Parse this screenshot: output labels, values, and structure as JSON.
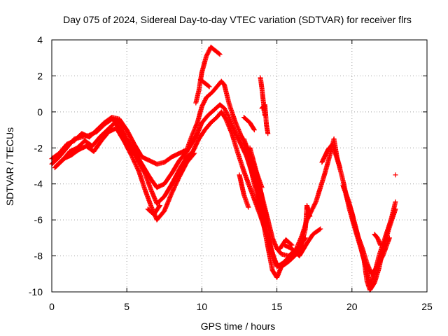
{
  "chart_data": {
    "type": "scatter",
    "title": "Day 075 of 2024, Sidereal Day-to-day VTEC variation (SDTVAR) for receiver flrs",
    "xlabel": "GPS time / hours",
    "ylabel": "SDTVAR / TECUs",
    "xlim": [
      0,
      25
    ],
    "ylim": [
      -10,
      4
    ],
    "xticks": [
      0,
      5,
      10,
      15,
      20,
      25
    ],
    "yticks": [
      -10,
      -8,
      -6,
      -4,
      -2,
      0,
      2,
      4
    ],
    "grid": true,
    "marker": "plus",
    "color": "#ff0000",
    "series": [
      {
        "values": [
          [
            0.0,
            -2.6
          ],
          [
            0.5,
            -2.3
          ],
          [
            1.0,
            -1.8
          ],
          [
            1.5,
            -1.6
          ],
          [
            2.0,
            -1.2
          ],
          [
            2.5,
            -1.4
          ],
          [
            3.0,
            -1.0
          ],
          [
            3.5,
            -0.6
          ],
          [
            4.0,
            -0.3
          ],
          [
            4.5,
            -0.4
          ],
          [
            5.0,
            -1.0
          ],
          [
            5.5,
            -1.8
          ],
          [
            6.0,
            -2.5
          ],
          [
            6.5,
            -2.7
          ],
          [
            7.0,
            -2.9
          ],
          [
            7.5,
            -2.8
          ],
          [
            8.0,
            -2.5
          ],
          [
            8.5,
            -2.3
          ],
          [
            9.0,
            -2.1
          ],
          [
            9.3,
            -1.4
          ],
          [
            9.7,
            -0.6
          ],
          [
            10.0,
            0.3
          ],
          [
            10.3,
            0.8
          ],
          [
            10.7,
            1.1
          ],
          [
            11.0,
            1.4
          ],
          [
            11.3,
            1.7
          ],
          [
            11.5,
            1.5
          ],
          [
            11.8,
            0.5
          ],
          [
            12.2,
            -0.5
          ],
          [
            12.6,
            -1.3
          ],
          [
            13.0,
            -2.0
          ],
          [
            13.4,
            -3.0
          ],
          [
            13.8,
            -4.0
          ],
          [
            14.1,
            -5.0
          ],
          [
            14.4,
            -6.0
          ],
          [
            14.7,
            -7.0
          ],
          [
            15.0,
            -7.6
          ],
          [
            15.3,
            -7.9
          ],
          [
            15.8,
            -8.0
          ],
          [
            16.3,
            -7.6
          ],
          [
            16.7,
            -6.8
          ],
          [
            17.0,
            -6.0
          ],
          [
            17.3,
            -5.5
          ],
          [
            17.6,
            -5.0
          ],
          [
            17.9,
            -4.2
          ],
          [
            18.2,
            -3.4
          ],
          [
            18.5,
            -2.5
          ],
          [
            18.8,
            -1.5
          ],
          [
            19.0,
            -2.5
          ],
          [
            19.4,
            -3.8
          ],
          [
            19.8,
            -5.3
          ],
          [
            20.2,
            -6.5
          ],
          [
            20.6,
            -7.6
          ],
          [
            21.0,
            -8.8
          ],
          [
            21.2,
            -9.6
          ],
          [
            21.5,
            -9.0
          ],
          [
            21.8,
            -8.0
          ],
          [
            22.2,
            -7.0
          ],
          [
            22.6,
            -6.0
          ],
          [
            22.9,
            -5.0
          ]
        ]
      },
      {
        "values": [
          [
            0.0,
            -2.9
          ],
          [
            0.5,
            -2.5
          ],
          [
            1.0,
            -2.0
          ],
          [
            1.5,
            -1.5
          ],
          [
            2.0,
            -1.4
          ],
          [
            2.5,
            -1.3
          ],
          [
            3.0,
            -1.1
          ],
          [
            3.5,
            -0.7
          ],
          [
            4.0,
            -0.4
          ],
          [
            4.5,
            -0.6
          ],
          [
            5.0,
            -1.5
          ],
          [
            5.5,
            -2.2
          ],
          [
            6.0,
            -2.9
          ],
          [
            6.5,
            -3.6
          ],
          [
            7.0,
            -4.2
          ],
          [
            7.5,
            -4.0
          ],
          [
            8.0,
            -3.4
          ],
          [
            8.5,
            -2.7
          ],
          [
            9.0,
            -2.2
          ],
          [
            9.3,
            -1.8
          ],
          [
            9.7,
            -1.2
          ],
          [
            10.0,
            -0.6
          ],
          [
            10.4,
            -0.2
          ],
          [
            10.8,
            0.1
          ],
          [
            11.2,
            0.4
          ],
          [
            11.5,
            0.2
          ],
          [
            11.8,
            -0.3
          ],
          [
            12.2,
            -1.1
          ],
          [
            12.6,
            -1.8
          ],
          [
            13.0,
            -2.5
          ],
          [
            13.4,
            -3.5
          ],
          [
            13.8,
            -4.6
          ],
          [
            14.1,
            -5.6
          ],
          [
            14.4,
            -6.8
          ],
          [
            14.7,
            -7.9
          ],
          [
            15.0,
            -8.5
          ],
          [
            15.3,
            -8.6
          ],
          [
            15.8,
            -8.3
          ],
          [
            16.3,
            -7.9
          ],
          [
            16.7,
            -7.4
          ]
        ]
      },
      {
        "values": [
          [
            0.2,
            -3.1
          ],
          [
            0.7,
            -2.7
          ],
          [
            1.2,
            -2.2
          ],
          [
            1.7,
            -2.0
          ],
          [
            2.2,
            -1.6
          ],
          [
            2.7,
            -1.9
          ],
          [
            3.2,
            -1.4
          ],
          [
            3.7,
            -1.0
          ],
          [
            4.2,
            -0.6
          ],
          [
            4.7,
            -1.2
          ],
          [
            5.2,
            -1.9
          ],
          [
            5.7,
            -2.6
          ],
          [
            6.2,
            -3.4
          ],
          [
            6.6,
            -4.3
          ],
          [
            7.0,
            -5.1
          ],
          [
            7.5,
            -4.7
          ],
          [
            8.0,
            -4.0
          ],
          [
            8.5,
            -3.2
          ],
          [
            9.0,
            -2.5
          ],
          [
            9.4,
            -2.2
          ],
          [
            9.8,
            -1.5
          ],
          [
            10.2,
            -1.0
          ],
          [
            10.6,
            -0.6
          ],
          [
            11.0,
            -0.3
          ],
          [
            11.3,
            0.0
          ],
          [
            11.6,
            -0.4
          ],
          [
            12.0,
            -1.2
          ],
          [
            12.4,
            -2.3
          ],
          [
            12.8,
            -3.3
          ],
          [
            13.2,
            -4.2
          ],
          [
            13.6,
            -5.1
          ],
          [
            14.0,
            -6.0
          ],
          [
            14.4,
            -7.0
          ],
          [
            14.8,
            -8.1
          ],
          [
            15.0,
            -8.6
          ],
          [
            15.4,
            -8.4
          ],
          [
            15.9,
            -8.0
          ],
          [
            16.4,
            -7.6
          ],
          [
            16.9,
            -7.0
          ]
        ]
      },
      {
        "values": [
          [
            0.3,
            -3.0
          ],
          [
            0.8,
            -2.6
          ],
          [
            1.3,
            -2.4
          ],
          [
            1.8,
            -2.1
          ],
          [
            2.3,
            -1.9
          ],
          [
            2.8,
            -2.2
          ],
          [
            3.3,
            -1.6
          ],
          [
            3.8,
            -1.1
          ],
          [
            4.3,
            -0.9
          ],
          [
            4.8,
            -1.6
          ],
          [
            5.3,
            -2.4
          ],
          [
            5.8,
            -3.3
          ],
          [
            6.2,
            -4.3
          ],
          [
            6.6,
            -5.2
          ],
          [
            7.0,
            -6.0
          ],
          [
            7.5,
            -5.5
          ],
          [
            8.0,
            -4.5
          ],
          [
            8.5,
            -3.6
          ],
          [
            9.0,
            -2.8
          ],
          [
            9.5,
            -2.3
          ]
        ]
      },
      {
        "values": [
          [
            6.4,
            -5.4
          ],
          [
            6.8,
            -5.7
          ],
          [
            7.2,
            -5.2
          ]
        ]
      },
      {
        "values": [
          [
            9.6,
            0.5
          ],
          [
            9.8,
            1.2
          ],
          [
            10.0,
            2.2
          ],
          [
            10.3,
            3.1
          ],
          [
            10.6,
            3.6
          ],
          [
            10.9,
            3.4
          ],
          [
            11.2,
            3.2
          ]
        ]
      },
      {
        "values": [
          [
            9.9,
            1.8
          ],
          [
            10.2,
            1.6
          ],
          [
            10.5,
            1.4
          ]
        ]
      },
      {
        "values": [
          [
            12.8,
            -0.3
          ],
          [
            13.2,
            -0.6
          ],
          [
            13.5,
            -1.0
          ]
        ]
      },
      {
        "values": [
          [
            12.5,
            -3.5
          ],
          [
            12.8,
            -4.6
          ],
          [
            13.1,
            -5.3
          ]
        ]
      },
      {
        "values": [
          [
            12.8,
            -1.5
          ],
          [
            13.1,
            -2.2
          ],
          [
            13.4,
            -2.8
          ],
          [
            13.7,
            -3.5
          ],
          [
            14.0,
            -4.2
          ]
        ]
      },
      {
        "values": [
          [
            13.2,
            -2.0
          ],
          [
            13.5,
            -2.9
          ],
          [
            13.8,
            -3.9
          ],
          [
            14.1,
            -5.2
          ],
          [
            14.4,
            -6.0
          ]
        ]
      },
      {
        "values": [
          [
            13.0,
            -2.5
          ],
          [
            13.3,
            -3.3
          ],
          [
            13.6,
            -4.4
          ],
          [
            13.9,
            -5.6
          ],
          [
            14.2,
            -6.5
          ],
          [
            14.5,
            -7.3
          ]
        ]
      },
      {
        "values": [
          [
            12.9,
            -1.8
          ],
          [
            13.2,
            -2.6
          ],
          [
            13.5,
            -3.4
          ],
          [
            13.8,
            -4.8
          ],
          [
            14.1,
            -6.2
          ],
          [
            14.4,
            -7.5
          ],
          [
            14.7,
            -8.8
          ],
          [
            15.0,
            -9.2
          ],
          [
            15.3,
            -8.6
          ]
        ]
      },
      {
        "values": [
          [
            14.0,
            0.2
          ],
          [
            14.2,
            0.4
          ],
          [
            14.3,
            -0.7
          ],
          [
            14.4,
            -1.2
          ]
        ]
      },
      {
        "values": [
          [
            13.9,
            1.9
          ],
          [
            14.0,
            1.3
          ],
          [
            14.2,
            -0.2
          ]
        ]
      },
      {
        "values": [
          [
            15.5,
            -7.4
          ],
          [
            16.0,
            -7.6
          ],
          [
            16.5,
            -8.0
          ],
          [
            17.0,
            -7.3
          ],
          [
            17.4,
            -6.8
          ],
          [
            17.9,
            -6.5
          ]
        ]
      },
      {
        "values": [
          [
            15.2,
            -7.6
          ],
          [
            15.6,
            -7.1
          ],
          [
            16.0,
            -7.4
          ]
        ]
      },
      {
        "values": [
          [
            16.5,
            -7.8
          ],
          [
            16.9,
            -6.5
          ],
          [
            17.0,
            -5.2
          ],
          [
            17.2,
            -5.8
          ]
        ]
      },
      {
        "values": [
          [
            18.0,
            -2.8
          ],
          [
            18.4,
            -2.1
          ],
          [
            18.7,
            -1.8
          ],
          [
            19.2,
            -3.1
          ]
        ]
      },
      {
        "values": [
          [
            19.4,
            -4.1
          ],
          [
            19.8,
            -5.0
          ],
          [
            20.2,
            -6.3
          ],
          [
            20.5,
            -7.2
          ],
          [
            20.8,
            -8.2
          ],
          [
            21.0,
            -9.4
          ],
          [
            21.2,
            -9.9
          ],
          [
            21.5,
            -9.5
          ],
          [
            21.8,
            -8.7
          ],
          [
            22.1,
            -7.5
          ],
          [
            22.5,
            -6.4
          ],
          [
            22.9,
            -5.4
          ]
        ]
      },
      {
        "values": [
          [
            19.6,
            -4.6
          ],
          [
            20.0,
            -5.6
          ],
          [
            20.4,
            -6.9
          ],
          [
            20.7,
            -7.6
          ],
          [
            21.0,
            -8.4
          ],
          [
            21.3,
            -9.0
          ],
          [
            21.7,
            -8.6
          ],
          [
            22.1,
            -7.9
          ],
          [
            22.5,
            -7.0
          ]
        ]
      },
      {
        "values": [
          [
            21.5,
            -6.8
          ],
          [
            21.7,
            -7.0
          ],
          [
            21.9,
            -7.4
          ]
        ]
      },
      {
        "values": [
          [
            22.9,
            -3.5
          ]
        ]
      }
    ]
  }
}
